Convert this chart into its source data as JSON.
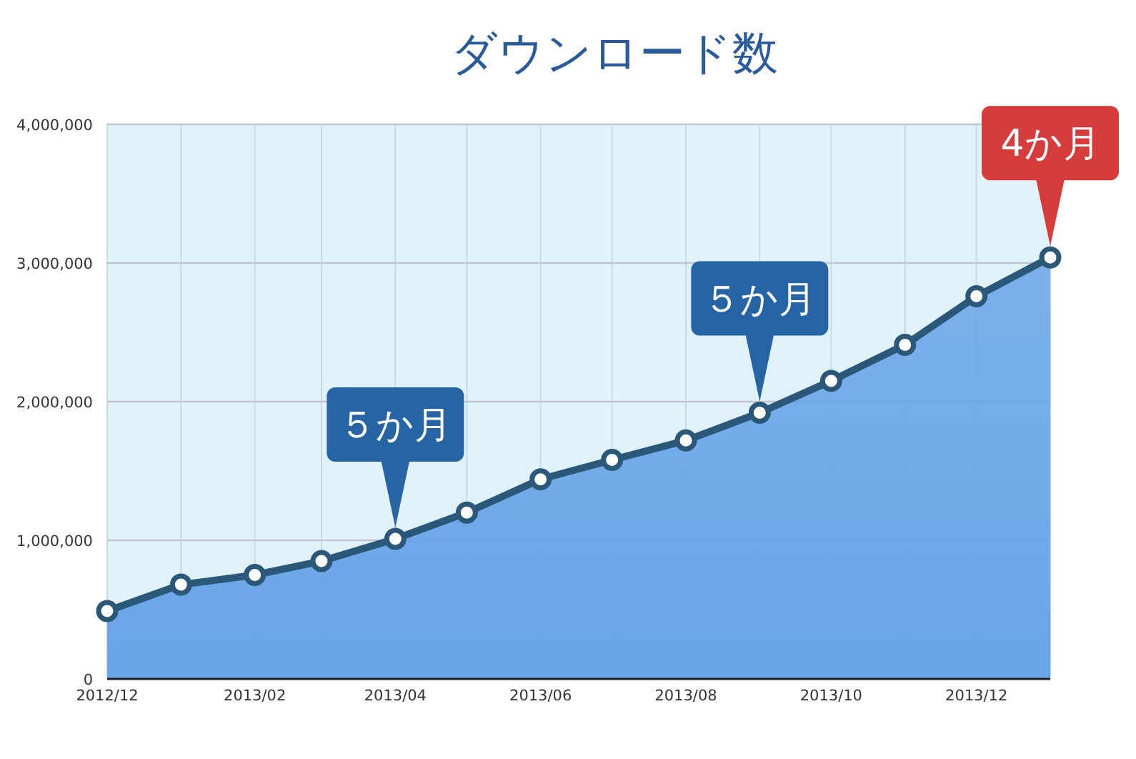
{
  "chart_data": {
    "type": "area",
    "title": "ダウンロード数",
    "x": [
      "2012-12",
      "2013-01",
      "2013-02",
      "2013-03",
      "2013-04",
      "2013-05",
      "2013-06",
      "2013-07",
      "2013-08",
      "2013-09",
      "2013-10",
      "2013-11",
      "2013-12",
      "2014-01"
    ],
    "series": [
      {
        "color": "#6aa5e8",
        "values": [
          490000,
          680000,
          750000,
          850000,
          1010000,
          1200000,
          1440000,
          1580000,
          1720000,
          1920000,
          2150000,
          2410000,
          2760000,
          3040000
        ]
      }
    ],
    "xlim": [
      "2012-12",
      "2014-01"
    ],
    "xticks": [
      {
        "value": "2012-12",
        "label": "2012/12"
      },
      {
        "value": "2013-01",
        "label": null
      },
      {
        "value": "2013-02",
        "label": "2013/02"
      },
      {
        "value": "2013-03",
        "label": null
      },
      {
        "value": "2013-04",
        "label": "2013/04"
      },
      {
        "value": "2013-05",
        "label": null
      },
      {
        "value": "2013-06",
        "label": "2013/06"
      },
      {
        "value": "2013-07",
        "label": null
      },
      {
        "value": "2013-08",
        "label": "2013/08"
      },
      {
        "value": "2013-09",
        "label": null
      },
      {
        "value": "2013-10",
        "label": "2013/10"
      },
      {
        "value": "2013-11",
        "label": null
      },
      {
        "value": "2013-12",
        "label": "2013/12"
      },
      {
        "value": "2014-01",
        "label": null
      }
    ],
    "ylim": [
      0,
      4000000
    ],
    "yticks": [
      0,
      {
        "value": 1000000,
        "label": "1,000,000"
      },
      {
        "value": 2000000,
        "label": "2,000,000"
      },
      {
        "value": 3000000,
        "label": "3,000,000"
      },
      {
        "value": 4000000,
        "label": "4,000,000"
      }
    ],
    "grid": true,
    "marker": "circle",
    "annotations": [
      {
        "text": "５か月",
        "x": "2013-04",
        "y": 1010000
      },
      {
        "text": "５か月",
        "x": "2013-09",
        "y": 1920000
      },
      {
        "text": "4か月",
        "x": "2014-01",
        "y": 3040000
      }
    ]
  }
}
